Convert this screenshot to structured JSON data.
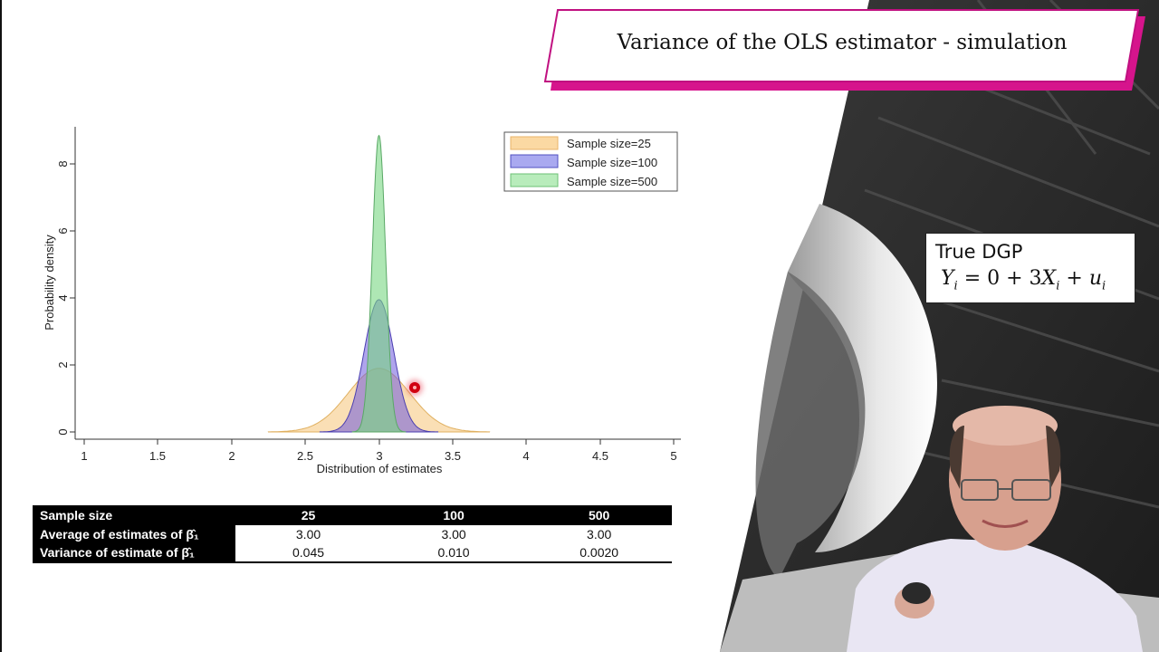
{
  "slide": {
    "title": "Variance of the OLS estimator - simulation",
    "accent_color": "#d6148c"
  },
  "dgp_box": {
    "title": "True DGP",
    "equation": "Y_i = 0 + 3X_i + u_i",
    "eq_parts": {
      "y": "Y",
      "i1": "i",
      "mid": " = 0 + 3",
      "x": "X",
      "i2": "i",
      "plus": " + ",
      "u": "u",
      "i3": "i"
    }
  },
  "chart_data": {
    "type": "area",
    "title": "",
    "xlabel": "Distribution of estimates",
    "ylabel": "Probability density",
    "xlim": [
      1,
      5
    ],
    "ylim": [
      0,
      9
    ],
    "x_ticks": [
      "1",
      "1.5",
      "2",
      "2.5",
      "3",
      "3.5",
      "4",
      "4.5",
      "5"
    ],
    "y_ticks": [
      "0",
      "2",
      "4",
      "6",
      "8"
    ],
    "grid": false,
    "legend_position": "top-right",
    "series": [
      {
        "name": "Sample size=25",
        "color": "#f5c77e",
        "mean": 3.0,
        "variance": 0.045,
        "peak_density": 1.9,
        "support": [
          2.25,
          3.75
        ]
      },
      {
        "name": "Sample size=100",
        "color": "#6f6fe0",
        "mean": 3.0,
        "variance": 0.01,
        "peak_density": 3.95,
        "support": [
          2.6,
          3.4
        ]
      },
      {
        "name": "Sample size=500",
        "color": "#7fdc86",
        "mean": 3.0,
        "variance": 0.002,
        "peak_density": 8.85,
        "support": [
          2.82,
          3.18
        ]
      }
    ]
  },
  "legend": {
    "items": [
      {
        "label": "Sample size=25",
        "color": "#fbd9a3",
        "border": "#e8b46a"
      },
      {
        "label": "Sample size=100",
        "color": "#a9a9f0",
        "border": "#5050c0"
      },
      {
        "label": "Sample size=500",
        "color": "#b8ecbb",
        "border": "#6cc076"
      }
    ]
  },
  "axes": {
    "x_ticks": [
      "1",
      "1.5",
      "2",
      "2.5",
      "3",
      "3.5",
      "4",
      "4.5",
      "5"
    ],
    "y_ticks": [
      "0",
      "2",
      "4",
      "6",
      "8"
    ],
    "xlabel": "Distribution of estimates",
    "ylabel": "Probability density"
  },
  "table": {
    "header": {
      "label": "Sample size",
      "cols": [
        "25",
        "100",
        "500"
      ]
    },
    "rows": [
      {
        "label": "Average of estimates of β̂₁",
        "values": [
          "3.00",
          "3.00",
          "3.00"
        ]
      },
      {
        "label": "Variance of estimate of β̂₁",
        "values": [
          "0.045",
          "0.010",
          "0.0020"
        ]
      }
    ]
  }
}
